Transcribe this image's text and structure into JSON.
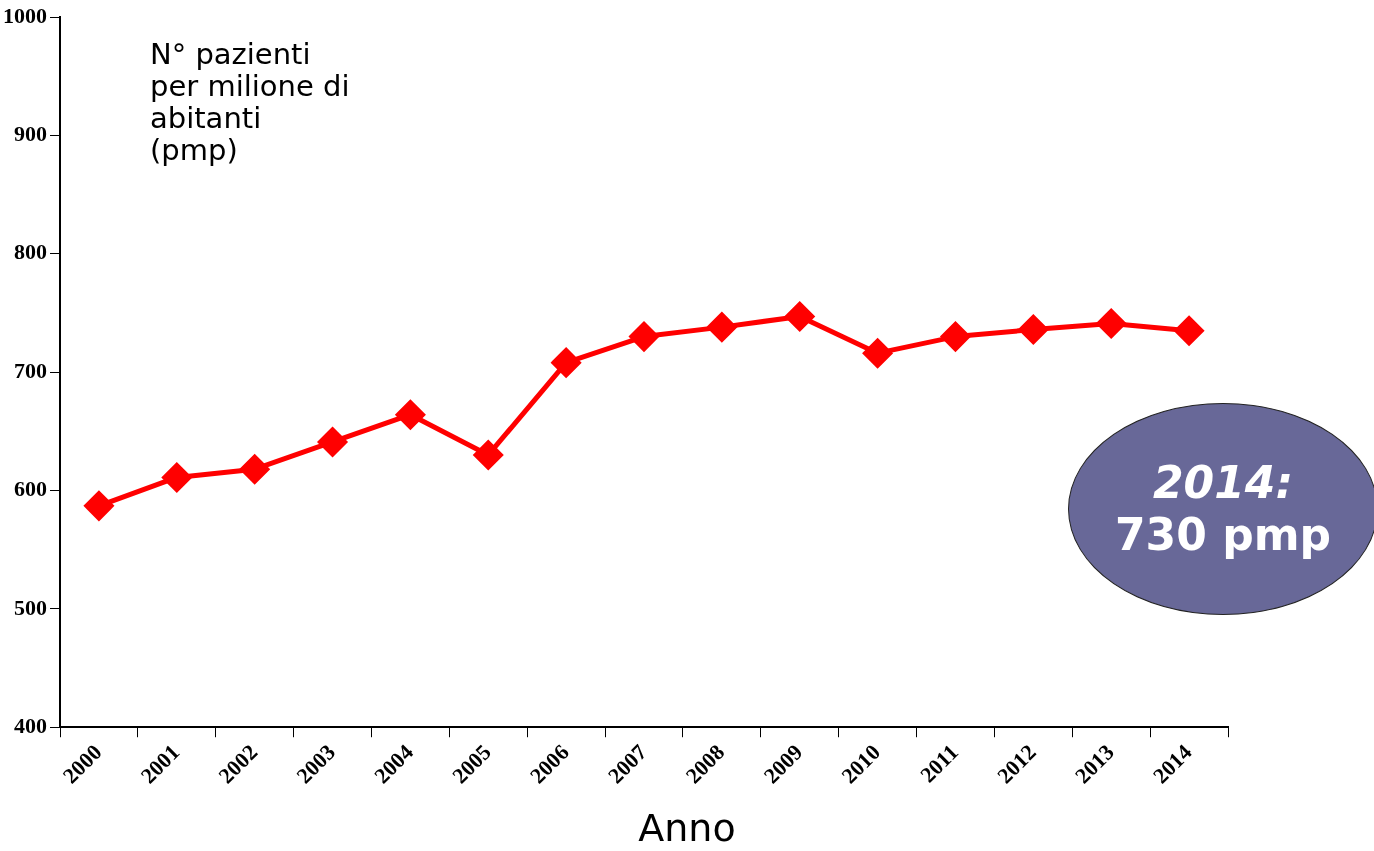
{
  "chart_data": {
    "type": "line",
    "categories": [
      "2000",
      "2001",
      "2002",
      "2003",
      "2004",
      "2005",
      "2006",
      "2007",
      "2008",
      "2009",
      "2010",
      "2011",
      "2012",
      "2013",
      "2014"
    ],
    "series": [
      {
        "color": "#ff0000",
        "values": [
          587,
          611,
          618,
          641,
          664,
          630,
          708,
          730,
          738,
          747,
          716,
          730,
          736,
          741,
          735
        ]
      }
    ],
    "ylim": [
      400,
      1000
    ],
    "yticks": [
      400,
      500,
      600,
      700,
      800,
      900,
      1000
    ],
    "xlabel": "Anno",
    "ylabel": "N° pazienti per milione di abitanti (pmp)",
    "annotations": [
      "2014: 730 pmp"
    ],
    "grid": false,
    "legend": false,
    "marker": "diamond",
    "line_style": "solid"
  }
}
